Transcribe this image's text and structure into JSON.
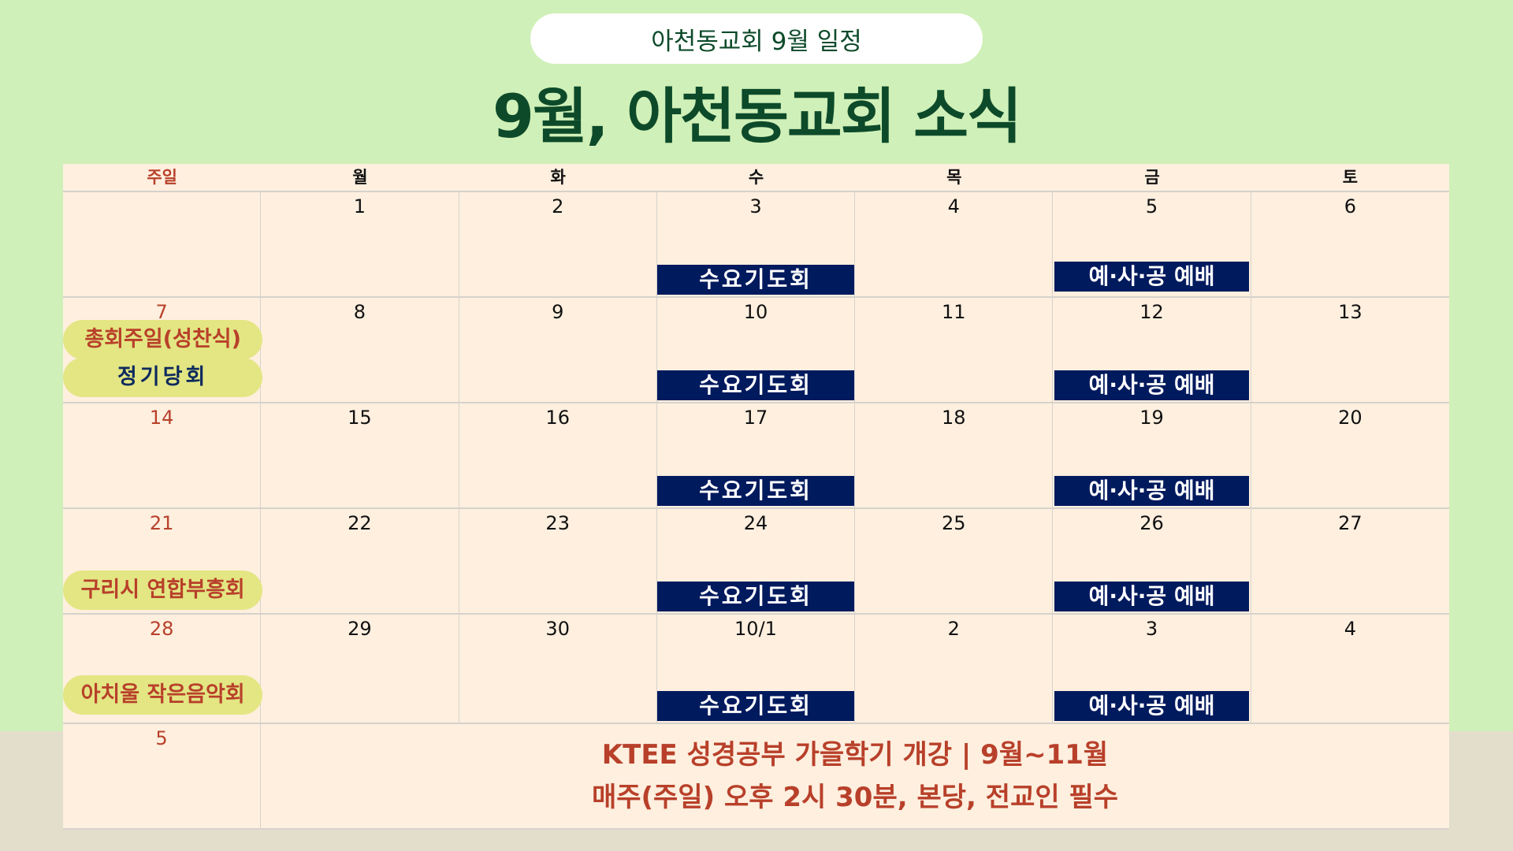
{
  "header": {
    "pill": "아천동교회 9월 일정",
    "title": "9월, 아천동교회 소식"
  },
  "weekdays": [
    "주일",
    "월",
    "화",
    "수",
    "목",
    "금",
    "토"
  ],
  "events": {
    "wed": "수요기도회",
    "fri": "예·사·공 예배"
  },
  "weeks": [
    {
      "days": [
        "",
        "1",
        "2",
        "3",
        "4",
        "5",
        "6"
      ],
      "sunday_events": []
    },
    {
      "days": [
        "7",
        "8",
        "9",
        "10",
        "11",
        "12",
        "13"
      ],
      "sunday_events": [
        "총회주일(성찬식)",
        "정기당회"
      ]
    },
    {
      "days": [
        "14",
        "15",
        "16",
        "17",
        "18",
        "19",
        "20"
      ],
      "sunday_events": []
    },
    {
      "days": [
        "21",
        "22",
        "23",
        "24",
        "25",
        "26",
        "27"
      ],
      "sunday_events": [
        "구리시 연합부흥회"
      ]
    },
    {
      "days": [
        "28",
        "29",
        "30",
        "10/1",
        "2",
        "3",
        "4"
      ],
      "sunday_events": [
        "아치울 작은음악회"
      ]
    }
  ],
  "last_row": {
    "day": "5",
    "line1": "KTEE 성경공부 가을학기 개강 | 9월~11월",
    "line2": "매주(주일) 오후 2시 30분, 본당, 전교인 필수"
  },
  "colors": {
    "background": "#cff0b8",
    "title": "#0d4a2a",
    "cell": "#feefdf",
    "event_blue": "#001a5e",
    "event_yellow": "#e3e683",
    "sunday_red": "#b8402a"
  }
}
